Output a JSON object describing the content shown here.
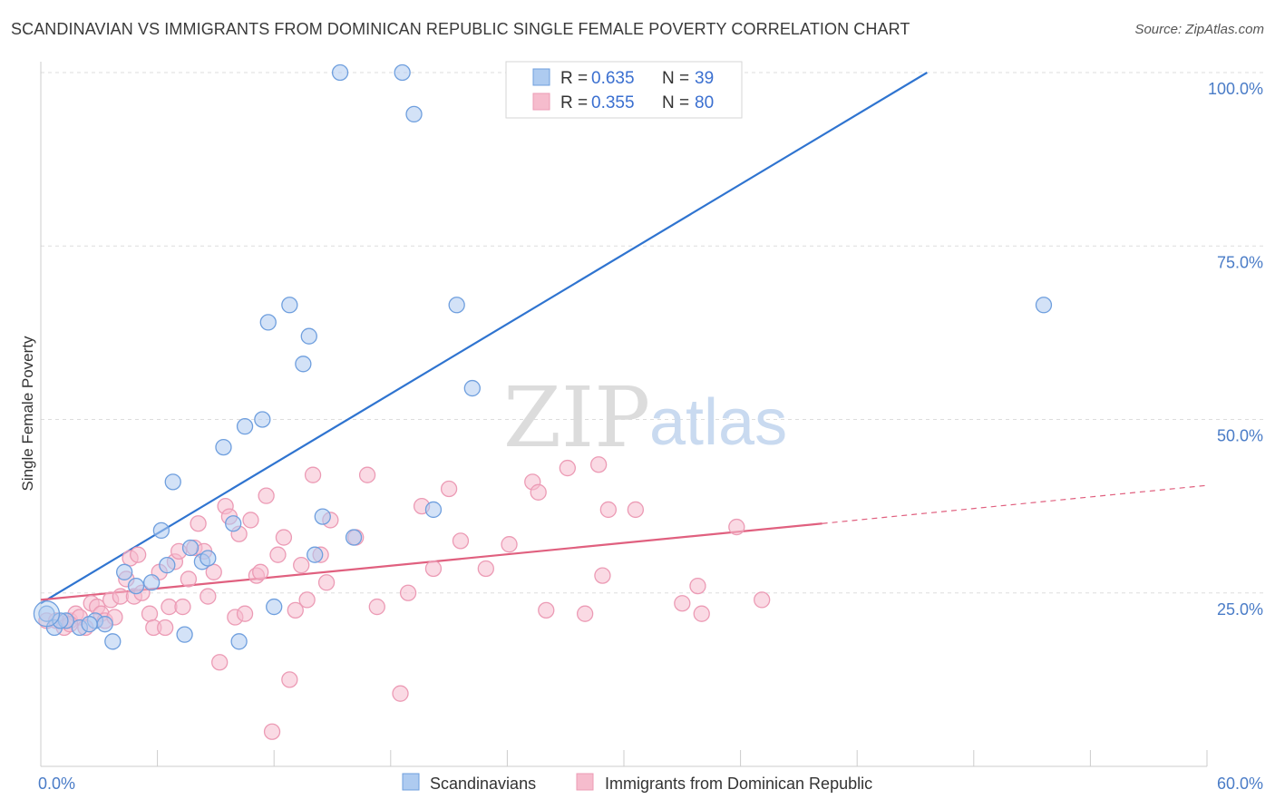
{
  "title": "SCANDINAVIAN VS IMMIGRANTS FROM DOMINICAN REPUBLIC SINGLE FEMALE POVERTY CORRELATION CHART",
  "source": "Source: ZipAtlas.com",
  "watermark": {
    "zip": "ZIP",
    "atlas": "atlas"
  },
  "colors": {
    "blue": "#2f74d0",
    "blue_fill": "#aecbf0",
    "blue_stroke": "#6f9fde",
    "pink": "#e0607f",
    "pink_fill": "#f6bccd",
    "pink_stroke": "#ec9bb5",
    "tick": "#4a7cc7",
    "grid": "#dddddd"
  },
  "legend": {
    "rows": [
      {
        "r_label": "R =",
        "r_value": "0.635",
        "n_label": "N =",
        "n_value": "39"
      },
      {
        "r_label": "R =",
        "r_value": "0.355",
        "n_label": "N =",
        "n_value": "80"
      }
    ]
  },
  "bottom_legend": [
    "Scandinavians",
    "Immigrants from Dominican Republic"
  ],
  "chart_data": {
    "type": "scatter",
    "title": "SCANDINAVIAN VS IMMIGRANTS FROM DOMINICAN REPUBLIC SINGLE FEMALE POVERTY CORRELATION CHART",
    "xlabel": "",
    "ylabel": "Single Female Poverty",
    "xlim": [
      0,
      60
    ],
    "ylim": [
      0,
      100
    ],
    "x_tick_labels": [
      {
        "value": 0,
        "label": "0.0%"
      },
      {
        "value": 60,
        "label": "60.0%"
      }
    ],
    "y_tick_labels": [
      {
        "value": 25,
        "label": "25.0%"
      },
      {
        "value": 50,
        "label": "50.0%"
      },
      {
        "value": 75,
        "label": "75.0%"
      },
      {
        "value": 100,
        "label": "100.0%"
      }
    ],
    "grid": true,
    "legend_position": "top-center",
    "series": [
      {
        "name": "Scandinavians",
        "color": "#2f74d0",
        "r": 0.635,
        "n": 39,
        "trend": {
          "x": [
            0,
            45.6
          ],
          "y": [
            23.5,
            100
          ]
        },
        "points": [
          [
            0.3,
            22
          ],
          [
            0.7,
            20
          ],
          [
            1.3,
            21
          ],
          [
            2.0,
            20
          ],
          [
            2.8,
            21
          ],
          [
            3.7,
            18
          ],
          [
            3.3,
            20.5
          ],
          [
            4.3,
            28
          ],
          [
            5.7,
            26.5
          ],
          [
            4.9,
            26
          ],
          [
            6.5,
            29
          ],
          [
            6.2,
            34
          ],
          [
            6.8,
            41
          ],
          [
            7.4,
            19
          ],
          [
            7.7,
            31.5
          ],
          [
            8.3,
            29.5
          ],
          [
            8.6,
            30
          ],
          [
            9.4,
            46
          ],
          [
            9.9,
            35
          ],
          [
            10.2,
            18
          ],
          [
            10.5,
            49
          ],
          [
            11.4,
            50
          ],
          [
            11.7,
            64
          ],
          [
            12.0,
            23
          ],
          [
            12.8,
            66.5
          ],
          [
            13.5,
            58
          ],
          [
            13.8,
            62
          ],
          [
            14.1,
            30.5
          ],
          [
            14.5,
            36
          ],
          [
            15.4,
            100
          ],
          [
            16.1,
            33
          ],
          [
            18.6,
            100
          ],
          [
            19.2,
            94
          ],
          [
            20.2,
            37
          ],
          [
            21.4,
            66.5
          ],
          [
            22.2,
            54.5
          ],
          [
            51.6,
            66.5
          ],
          [
            1.0,
            21
          ],
          [
            2.5,
            20.5
          ]
        ]
      },
      {
        "name": "Immigrants from Dominican Republic",
        "color": "#e0607f",
        "r": 0.355,
        "n": 80,
        "trend": {
          "x": [
            0,
            40.2
          ],
          "y": [
            24,
            35
          ]
        },
        "trend_dashed": {
          "x": [
            40.2,
            60
          ],
          "y": [
            35,
            40.5
          ]
        },
        "points": [
          [
            0.3,
            21
          ],
          [
            0.8,
            21
          ],
          [
            1.2,
            20
          ],
          [
            1.5,
            21
          ],
          [
            1.8,
            22
          ],
          [
            2.0,
            21.5
          ],
          [
            2.3,
            20
          ],
          [
            2.6,
            23.5
          ],
          [
            2.9,
            23
          ],
          [
            3.1,
            22
          ],
          [
            3.3,
            21
          ],
          [
            3.6,
            24
          ],
          [
            3.8,
            21.5
          ],
          [
            4.1,
            24.5
          ],
          [
            4.4,
            27
          ],
          [
            4.6,
            30
          ],
          [
            4.8,
            24.5
          ],
          [
            5.0,
            30.5
          ],
          [
            5.2,
            25
          ],
          [
            5.6,
            22
          ],
          [
            5.8,
            20
          ],
          [
            6.1,
            28
          ],
          [
            6.4,
            20
          ],
          [
            6.6,
            23
          ],
          [
            6.9,
            29.5
          ],
          [
            7.1,
            31
          ],
          [
            7.3,
            23
          ],
          [
            7.6,
            27
          ],
          [
            7.9,
            31.5
          ],
          [
            8.1,
            35
          ],
          [
            8.4,
            31
          ],
          [
            8.6,
            24.5
          ],
          [
            8.9,
            28
          ],
          [
            9.2,
            15
          ],
          [
            9.5,
            37.5
          ],
          [
            9.7,
            36
          ],
          [
            10.0,
            21.5
          ],
          [
            10.2,
            33.5
          ],
          [
            10.5,
            22
          ],
          [
            10.8,
            35.5
          ],
          [
            11.1,
            27.5
          ],
          [
            11.3,
            28
          ],
          [
            11.6,
            39
          ],
          [
            11.9,
            5
          ],
          [
            12.2,
            30.5
          ],
          [
            12.5,
            33
          ],
          [
            12.8,
            12.5
          ],
          [
            13.1,
            22.5
          ],
          [
            13.4,
            29
          ],
          [
            13.7,
            24
          ],
          [
            14.0,
            42
          ],
          [
            14.4,
            30.5
          ],
          [
            14.7,
            26.5
          ],
          [
            14.9,
            35.5
          ],
          [
            16.2,
            33
          ],
          [
            16.8,
            42
          ],
          [
            17.3,
            23
          ],
          [
            18.5,
            10.5
          ],
          [
            18.9,
            25
          ],
          [
            19.6,
            37.5
          ],
          [
            20.2,
            28.5
          ],
          [
            21.0,
            40
          ],
          [
            21.6,
            32.5
          ],
          [
            22.9,
            28.5
          ],
          [
            24.1,
            32
          ],
          [
            25.3,
            41
          ],
          [
            25.6,
            39.5
          ],
          [
            26.0,
            22.5
          ],
          [
            27.1,
            43
          ],
          [
            28.0,
            22
          ],
          [
            28.7,
            43.5
          ],
          [
            28.9,
            27.5
          ],
          [
            29.2,
            37
          ],
          [
            30.6,
            37
          ],
          [
            33.0,
            23.5
          ],
          [
            33.8,
            26
          ],
          [
            34.0,
            22
          ],
          [
            35.8,
            34.5
          ],
          [
            37.1,
            24
          ],
          [
            1.5,
            20.5
          ]
        ]
      }
    ]
  }
}
